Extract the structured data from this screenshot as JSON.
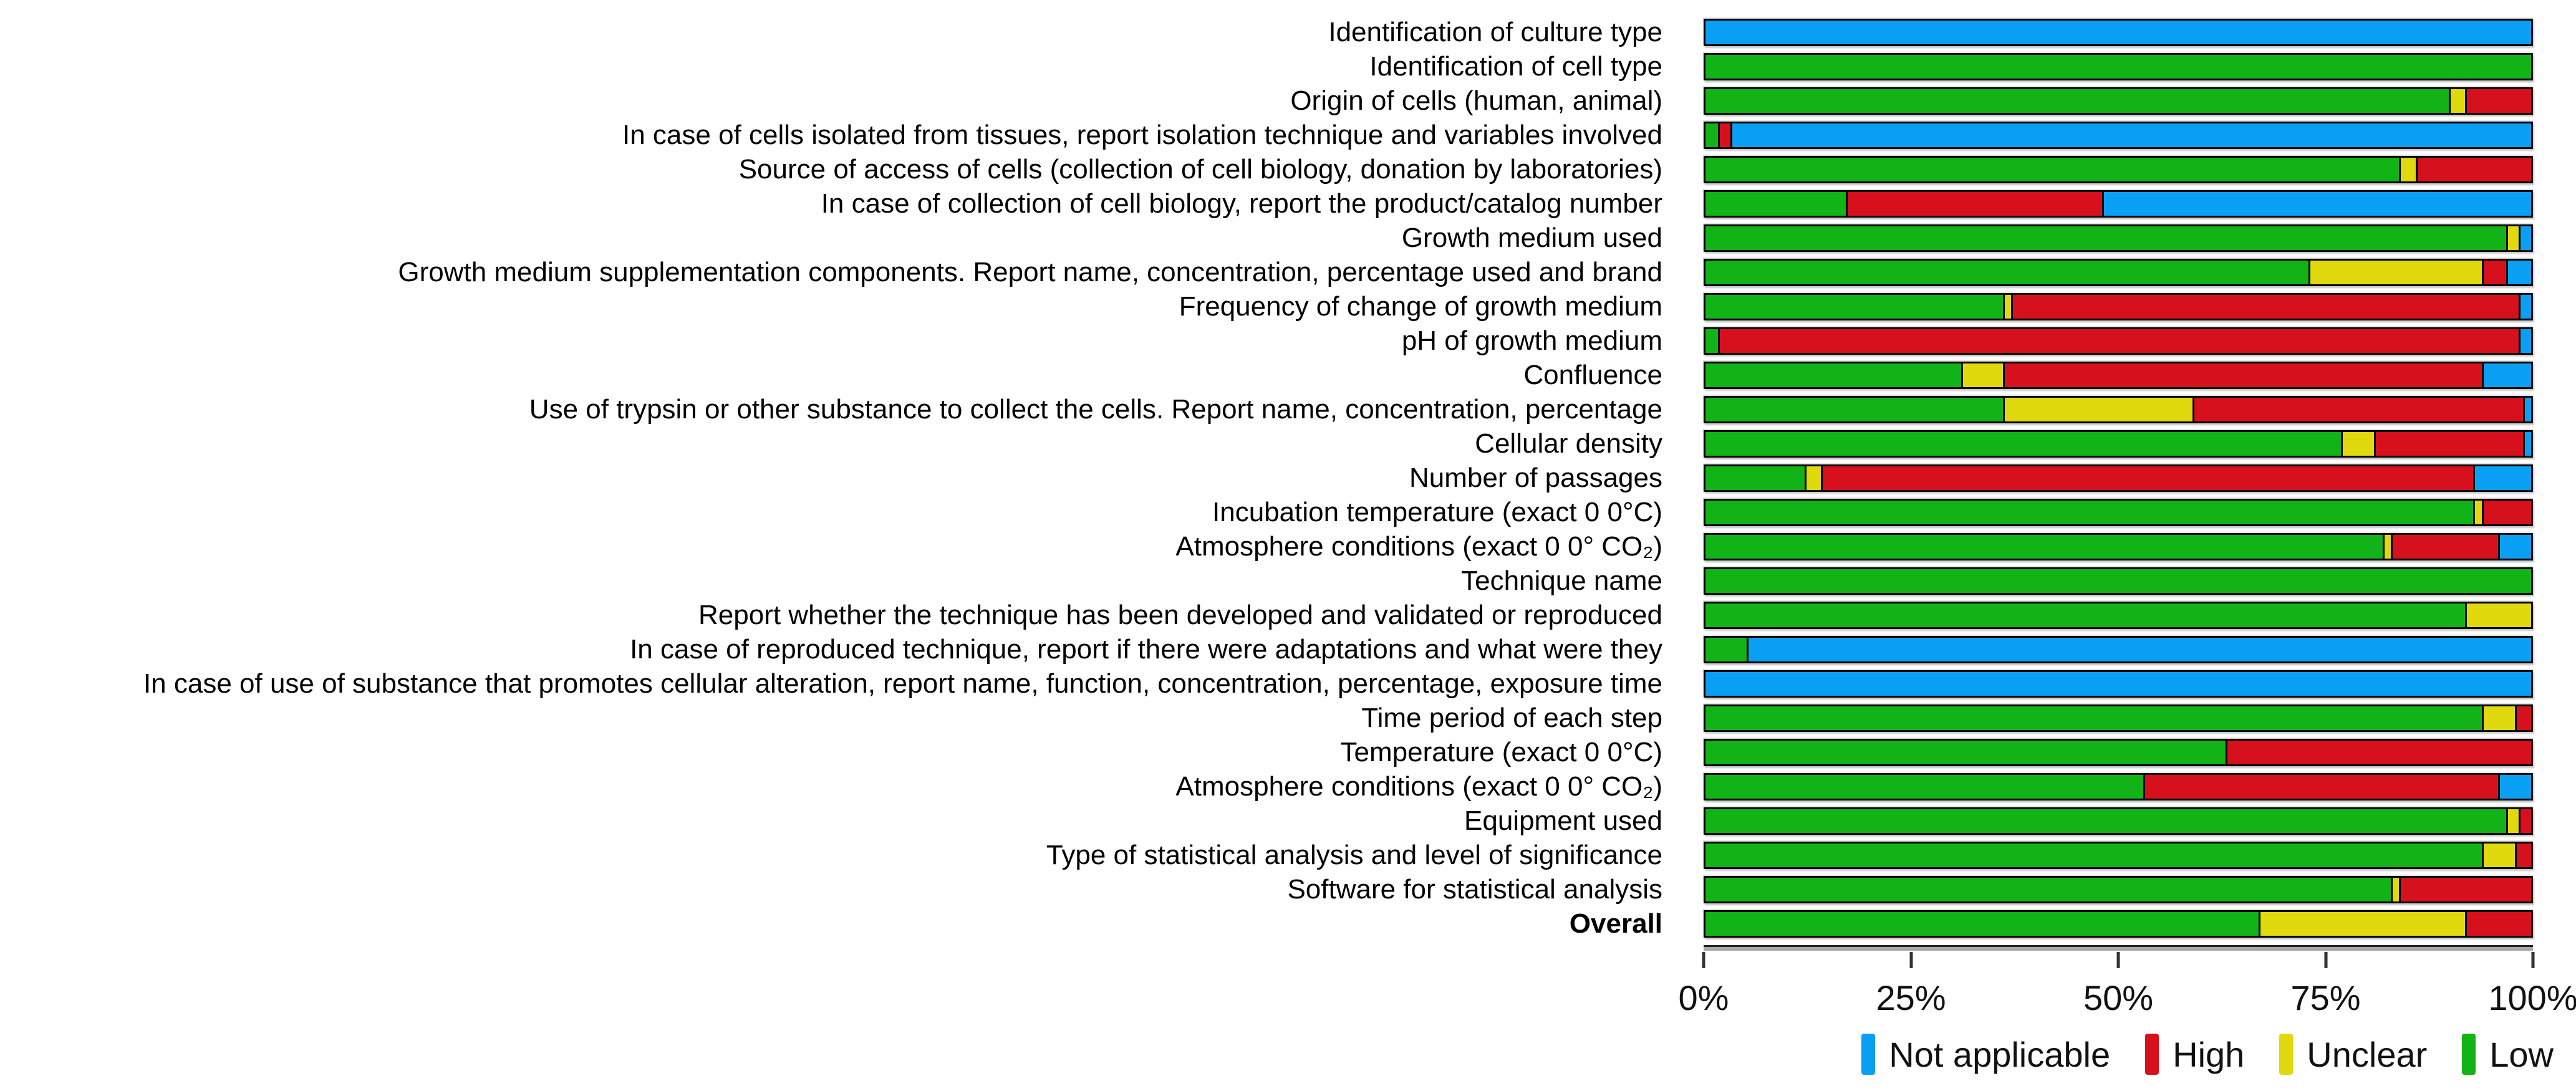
{
  "chart_data": {
    "type": "bar",
    "subtype": "horizontal-stacked-percent",
    "title": "",
    "xlabel": "",
    "ylabel": "",
    "xlim": [
      0,
      100
    ],
    "grid": false,
    "legend_position": "bottom-right",
    "x_ticks": [
      "0%",
      "25%",
      "50%",
      "75%",
      "100%"
    ],
    "palette": {
      "na": "#0a9ff2",
      "high": "#d6101c",
      "unclear": "#dfd90e",
      "low": "#12b316"
    },
    "legend": [
      {
        "label": "Not applicable",
        "status": "na"
      },
      {
        "label": "High",
        "status": "high"
      },
      {
        "label": "Unclear",
        "status": "unclear"
      },
      {
        "label": "Low",
        "status": "low"
      }
    ],
    "rows": [
      {
        "label": "Identification of culture type",
        "bold": false,
        "segments": [
          {
            "status": "na",
            "pct": 100
          }
        ]
      },
      {
        "label": "Identification of cell type",
        "bold": false,
        "segments": [
          {
            "status": "low",
            "pct": 100
          }
        ]
      },
      {
        "label": "Origin of cells (human, animal)",
        "bold": false,
        "segments": [
          {
            "status": "low",
            "pct": 90
          },
          {
            "status": "unclear",
            "pct": 2
          },
          {
            "status": "high",
            "pct": 8
          }
        ]
      },
      {
        "label": "In case of cells isolated from tissues, report isolation technique and variables involved",
        "bold": false,
        "segments": [
          {
            "status": "low",
            "pct": 1.5
          },
          {
            "status": "high",
            "pct": 1.5
          },
          {
            "status": "na",
            "pct": 97
          }
        ]
      },
      {
        "label": "Source of access of cells (collection of cell biology, donation by laboratories)",
        "bold": false,
        "segments": [
          {
            "status": "low",
            "pct": 84
          },
          {
            "status": "unclear",
            "pct": 2
          },
          {
            "status": "high",
            "pct": 14
          }
        ]
      },
      {
        "label": "In case of collection of cell biology, report the product/catalog number",
        "bold": false,
        "segments": [
          {
            "status": "low",
            "pct": 17
          },
          {
            "status": "high",
            "pct": 31
          },
          {
            "status": "na",
            "pct": 52
          }
        ]
      },
      {
        "label": "Growth medium used",
        "bold": false,
        "segments": [
          {
            "status": "low",
            "pct": 97
          },
          {
            "status": "unclear",
            "pct": 1.5
          },
          {
            "status": "na",
            "pct": 1.5
          }
        ]
      },
      {
        "label": "Growth medium supplementation components. Report name, concentration, percentage used and brand",
        "bold": false,
        "segments": [
          {
            "status": "low",
            "pct": 73
          },
          {
            "status": "unclear",
            "pct": 21
          },
          {
            "status": "high",
            "pct": 3
          },
          {
            "status": "na",
            "pct": 3
          }
        ]
      },
      {
        "label": "Frequency of change of growth medium",
        "bold": false,
        "segments": [
          {
            "status": "low",
            "pct": 36
          },
          {
            "status": "unclear",
            "pct": 1
          },
          {
            "status": "high",
            "pct": 61.5
          },
          {
            "status": "na",
            "pct": 1.5
          }
        ]
      },
      {
        "label": "pH of growth medium",
        "bold": false,
        "segments": [
          {
            "status": "low",
            "pct": 1.5
          },
          {
            "status": "high",
            "pct": 97
          },
          {
            "status": "na",
            "pct": 1.5
          }
        ]
      },
      {
        "label": "Confluence",
        "bold": false,
        "segments": [
          {
            "status": "low",
            "pct": 31
          },
          {
            "status": "unclear",
            "pct": 5
          },
          {
            "status": "high",
            "pct": 58
          },
          {
            "status": "na",
            "pct": 6
          }
        ]
      },
      {
        "label": "Use of trypsin or other substance to collect the cells. Report name, concentration, percentage",
        "bold": false,
        "segments": [
          {
            "status": "low",
            "pct": 36
          },
          {
            "status": "unclear",
            "pct": 23
          },
          {
            "status": "high",
            "pct": 40
          },
          {
            "status": "na",
            "pct": 1
          }
        ]
      },
      {
        "label": "Cellular density",
        "bold": false,
        "segments": [
          {
            "status": "low",
            "pct": 77
          },
          {
            "status": "unclear",
            "pct": 4
          },
          {
            "status": "high",
            "pct": 18
          },
          {
            "status": "na",
            "pct": 1
          }
        ]
      },
      {
        "label": "Number of passages",
        "bold": false,
        "segments": [
          {
            "status": "low",
            "pct": 12
          },
          {
            "status": "unclear",
            "pct": 2
          },
          {
            "status": "high",
            "pct": 79
          },
          {
            "status": "na",
            "pct": 7
          }
        ]
      },
      {
        "label": "Incubation temperature (exact 0 0°C)",
        "bold": false,
        "segments": [
          {
            "status": "low",
            "pct": 93
          },
          {
            "status": "unclear",
            "pct": 1
          },
          {
            "status": "high",
            "pct": 6
          }
        ]
      },
      {
        "label": "Atmosphere conditions (exact 0 0° CO₂)",
        "bold": false,
        "segments": [
          {
            "status": "low",
            "pct": 82
          },
          {
            "status": "unclear",
            "pct": 1
          },
          {
            "status": "high",
            "pct": 13
          },
          {
            "status": "na",
            "pct": 4
          }
        ]
      },
      {
        "label": "Technique name",
        "bold": false,
        "segments": [
          {
            "status": "low",
            "pct": 100
          }
        ]
      },
      {
        "label": "Report whether the technique has been developed and validated or reproduced",
        "bold": false,
        "segments": [
          {
            "status": "low",
            "pct": 92
          },
          {
            "status": "unclear",
            "pct": 8
          }
        ]
      },
      {
        "label": "In case of reproduced technique, report if there were adaptations and what were they",
        "bold": false,
        "segments": [
          {
            "status": "low",
            "pct": 5
          },
          {
            "status": "na",
            "pct": 95
          }
        ]
      },
      {
        "label": "In case of use of substance that promotes cellular alteration, report name, function, concentration, percentage, exposure time",
        "bold": false,
        "segments": [
          {
            "status": "na",
            "pct": 100
          }
        ]
      },
      {
        "label": "Time period of each step",
        "bold": false,
        "segments": [
          {
            "status": "low",
            "pct": 94
          },
          {
            "status": "unclear",
            "pct": 4
          },
          {
            "status": "high",
            "pct": 2
          }
        ]
      },
      {
        "label": "Temperature (exact 0 0°C)",
        "bold": false,
        "segments": [
          {
            "status": "low",
            "pct": 63
          },
          {
            "status": "high",
            "pct": 37
          }
        ]
      },
      {
        "label": "Atmosphere conditions (exact 0 0° CO₂)",
        "bold": false,
        "segments": [
          {
            "status": "low",
            "pct": 53
          },
          {
            "status": "high",
            "pct": 43
          },
          {
            "status": "na",
            "pct": 4
          }
        ]
      },
      {
        "label": "Equipment used",
        "bold": false,
        "segments": [
          {
            "status": "low",
            "pct": 97
          },
          {
            "status": "unclear",
            "pct": 1.5
          },
          {
            "status": "high",
            "pct": 1.5
          }
        ]
      },
      {
        "label": "Type of statistical analysis and level of significance",
        "bold": false,
        "segments": [
          {
            "status": "low",
            "pct": 94
          },
          {
            "status": "unclear",
            "pct": 4
          },
          {
            "status": "high",
            "pct": 2
          }
        ]
      },
      {
        "label": "Software for statistical analysis",
        "bold": false,
        "segments": [
          {
            "status": "low",
            "pct": 83
          },
          {
            "status": "unclear",
            "pct": 1
          },
          {
            "status": "high",
            "pct": 16
          }
        ]
      },
      {
        "label": "Overall",
        "bold": true,
        "segments": [
          {
            "status": "low",
            "pct": 67
          },
          {
            "status": "unclear",
            "pct": 25
          },
          {
            "status": "high",
            "pct": 8
          }
        ]
      }
    ]
  }
}
